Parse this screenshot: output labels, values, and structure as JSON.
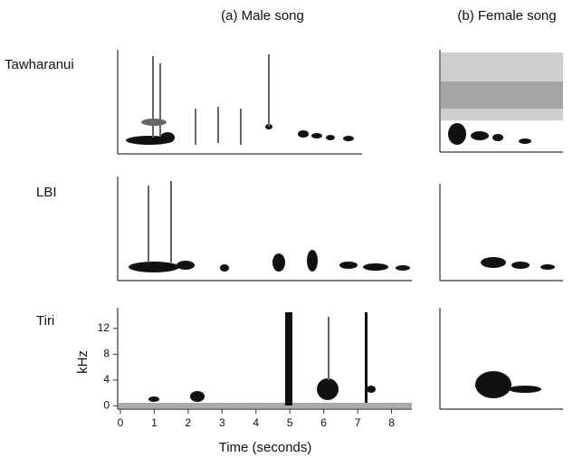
{
  "columns": [
    "(a) Male song",
    "(b) Female song"
  ],
  "rows": [
    "Tawharanui",
    "LBI",
    "Tiri"
  ],
  "axis": {
    "xlabel": "Time (seconds)",
    "ylabel": "kHz",
    "xlim": [
      0,
      8.6
    ],
    "xticks": [
      0,
      1,
      2,
      3,
      4,
      5,
      6,
      7,
      8
    ],
    "ylim": [
      -0.5,
      14.5
    ],
    "yticks": [
      0,
      4,
      8,
      12
    ]
  }
}
